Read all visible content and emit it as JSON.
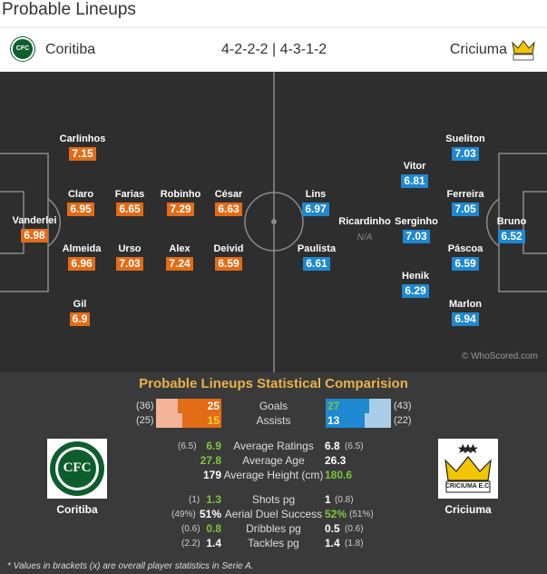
{
  "title": "Probable Lineups",
  "formation": "4-2-2-2 | 4-3-1-2",
  "home": {
    "name": "Coritiba",
    "crest_text": "CFC",
    "color": "#e36c16",
    "players": [
      {
        "name": "Carlinhos",
        "rating": "7.15"
      },
      {
        "name": "Vanderlei",
        "rating": "6.98"
      },
      {
        "name": "Claro",
        "rating": "6.95"
      },
      {
        "name": "Farias",
        "rating": "6.65"
      },
      {
        "name": "Robinho",
        "rating": "7.29"
      },
      {
        "name": "César",
        "rating": "6.63"
      },
      {
        "name": "Almeida",
        "rating": "6.96"
      },
      {
        "name": "Urso",
        "rating": "7.03"
      },
      {
        "name": "Alex",
        "rating": "7.24"
      },
      {
        "name": "Deivid",
        "rating": "6.59"
      },
      {
        "name": "Gil",
        "rating": "6.9"
      }
    ]
  },
  "away": {
    "name": "Criciuma",
    "crest_text": "CRICIUMA E.C.",
    "color": "#1e88d0",
    "players": [
      {
        "name": "Sueliton",
        "rating": "7.03"
      },
      {
        "name": "Vitor",
        "rating": "6.81"
      },
      {
        "name": "Lins",
        "rating": "6.97"
      },
      {
        "name": "Ferreira",
        "rating": "7.05"
      },
      {
        "name": "Ricardinho",
        "rating": "N/A"
      },
      {
        "name": "Serginho",
        "rating": "7.03"
      },
      {
        "name": "Bruno",
        "rating": "6.52"
      },
      {
        "name": "Paulista",
        "rating": "6.61"
      },
      {
        "name": "Páscoa",
        "rating": "6.59"
      },
      {
        "name": "Henik",
        "rating": "6.29"
      },
      {
        "name": "Marlon",
        "rating": "6.94"
      }
    ]
  },
  "watermark": "© WhoScored.com",
  "stats_title": "Probable Lineups Statistical Comparision",
  "bar_stats": [
    {
      "label": "Goals",
      "home": "25",
      "home_overall": "(36)",
      "away": "27",
      "away_overall": "(43)"
    },
    {
      "label": "Assists",
      "home": "15",
      "home_overall": "(25)",
      "away": "13",
      "away_overall": "(22)"
    }
  ],
  "stats": [
    {
      "label": "Average Ratings",
      "home": "6.9",
      "home_b": "(6.5)",
      "away": "6.8",
      "away_b": "(6.5)",
      "hc": "#7ec63f",
      "ac": "#ffffff"
    },
    {
      "label": "Average Age",
      "home": "27.8",
      "home_b": "",
      "away": "26.3",
      "away_b": "",
      "hc": "#7ec63f",
      "ac": "#ffffff"
    },
    {
      "label": "Average Height (cm)",
      "home": "179",
      "home_b": "",
      "away": "180.6",
      "away_b": "",
      "hc": "#ffffff",
      "ac": "#7ec63f"
    },
    {
      "label": "Shots pg",
      "home": "1.3",
      "home_b": "(1)",
      "away": "1",
      "away_b": "(0.8)",
      "hc": "#7ec63f",
      "ac": "#ffffff"
    },
    {
      "label": "Aerial Duel Success",
      "home": "51%",
      "home_b": "(49%)",
      "away": "52%",
      "away_b": "(51%)",
      "hc": "#ffffff",
      "ac": "#7ec63f"
    },
    {
      "label": "Dribbles pg",
      "home": "0.8",
      "home_b": "(0.6)",
      "away": "0.5",
      "away_b": "(0.6)",
      "hc": "#7ec63f",
      "ac": "#ffffff"
    },
    {
      "label": "Tackles pg",
      "home": "1.4",
      "home_b": "(2.2)",
      "away": "1.4",
      "away_b": "(1.8)",
      "hc": "#ffffff",
      "ac": "#ffffff"
    }
  ],
  "footnote": "* Values in brackets (x) are overall player statistics in Serie A."
}
